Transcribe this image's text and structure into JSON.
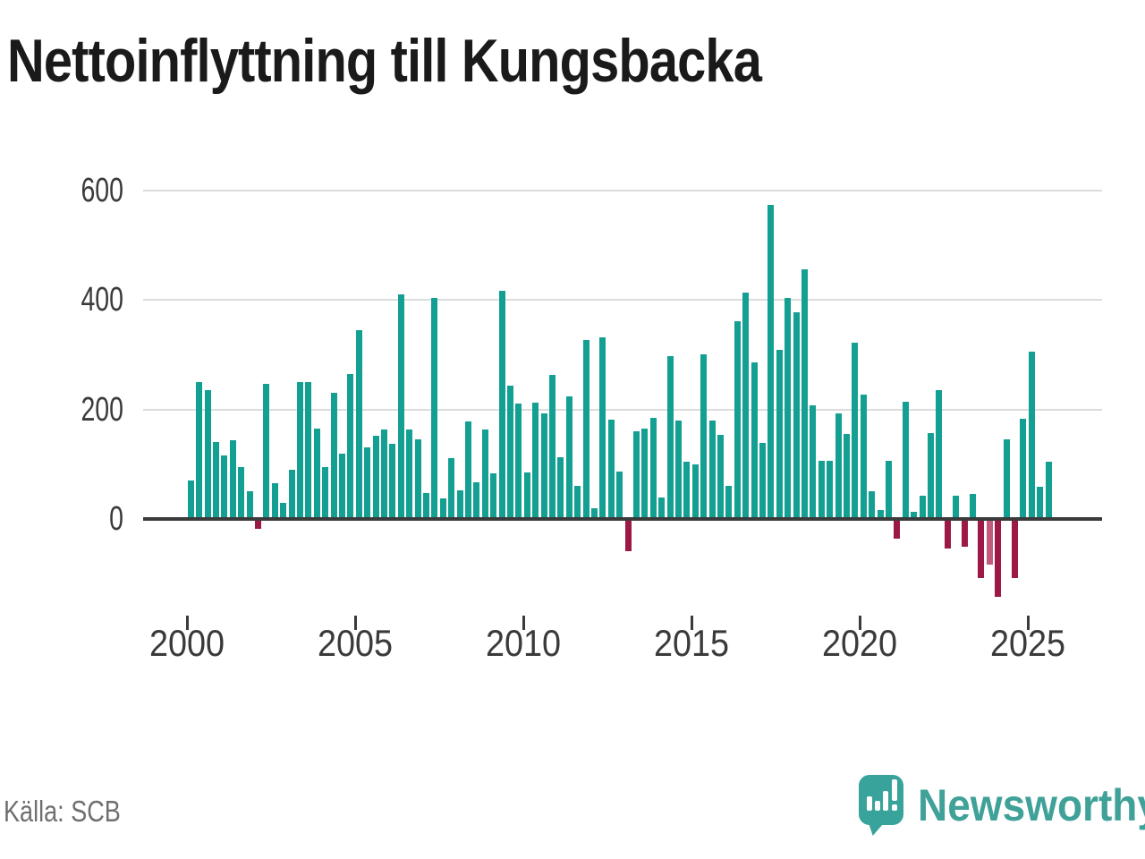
{
  "title": "Nettoinflyttning till Kungsbacka",
  "source": "Källa: SCB",
  "branding": {
    "name": "Newsworthy",
    "icon": "bar-chart-speech-bubble-icon"
  },
  "colors": {
    "positive_bar": "#13a093",
    "negative_bar": "#9b1847",
    "negative_bar_light": "#c25b7c",
    "gridline": "#dcdcdc",
    "zero_axis": "#3b3b3b",
    "axis_text": "#3a3a3a",
    "brand_teal": "#3fa198"
  },
  "chart_data": {
    "type": "bar",
    "title": "Nettoinflyttning till Kungsbacka",
    "xlabel": "",
    "ylabel": "",
    "grid": true,
    "legend": false,
    "y_ticks": [
      0,
      200,
      400,
      600
    ],
    "ylim": [
      -150,
      620
    ],
    "x_tick_labels": [
      "2000",
      "2005",
      "2010",
      "2015",
      "2020",
      "2025"
    ],
    "x_tick_quarter_indices": [
      0,
      20,
      40,
      60,
      80,
      100
    ],
    "highlighted_bar": {
      "x": "2023 K4",
      "style": "lighter red (provisional)"
    },
    "x": [
      "2000 K1",
      "2000 K2",
      "2000 K3",
      "2000 K4",
      "2001 K1",
      "2001 K2",
      "2001 K3",
      "2001 K4",
      "2002 K1",
      "2002 K2",
      "2002 K3",
      "2002 K4",
      "2003 K1",
      "2003 K2",
      "2003 K3",
      "2003 K4",
      "2004 K1",
      "2004 K2",
      "2004 K3",
      "2004 K4",
      "2005 K1",
      "2005 K2",
      "2005 K3",
      "2005 K4",
      "2006 K1",
      "2006 K2",
      "2006 K3",
      "2006 K4",
      "2007 K1",
      "2007 K2",
      "2007 K3",
      "2007 K4",
      "2008 K1",
      "2008 K2",
      "2008 K3",
      "2008 K4",
      "2009 K1",
      "2009 K2",
      "2009 K3",
      "2009 K4",
      "2010 K1",
      "2010 K2",
      "2010 K3",
      "2010 K4",
      "2011 K1",
      "2011 K2",
      "2011 K3",
      "2011 K4",
      "2012 K1",
      "2012 K2",
      "2012 K3",
      "2012 K4",
      "2013 K1",
      "2013 K2",
      "2013 K3",
      "2013 K4",
      "2014 K1",
      "2014 K2",
      "2014 K3",
      "2014 K4",
      "2015 K1",
      "2015 K2",
      "2015 K3",
      "2015 K4",
      "2016 K1",
      "2016 K2",
      "2016 K3",
      "2016 K4",
      "2017 K1",
      "2017 K2",
      "2017 K3",
      "2017 K4",
      "2018 K1",
      "2018 K2",
      "2018 K3",
      "2018 K4",
      "2019 K1",
      "2019 K2",
      "2019 K3",
      "2019 K4",
      "2020 K1",
      "2020 K2",
      "2020 K3",
      "2020 K4",
      "2021 K1",
      "2021 K2",
      "2021 K3",
      "2021 K4",
      "2022 K1",
      "2022 K2",
      "2022 K3",
      "2022 K4",
      "2023 K1",
      "2023 K2",
      "2023 K3",
      "2023 K4",
      "2024 K1",
      "2024 K2",
      "2024 K3",
      "2024 K4",
      "2025 K1",
      "2025 K2",
      "2025 K3"
    ],
    "values": [
      70,
      250,
      235,
      141,
      116,
      144,
      95,
      50,
      -14,
      246,
      65,
      29,
      90,
      250,
      250,
      165,
      95,
      231,
      119,
      265,
      345,
      130,
      152,
      163,
      137,
      410,
      163,
      145,
      48,
      403,
      38,
      111,
      52,
      178,
      67,
      163,
      84,
      417,
      243,
      211,
      85,
      213,
      193,
      263,
      113,
      223,
      60,
      327,
      19,
      331,
      181,
      87,
      -55,
      160,
      165,
      185,
      40,
      297,
      180,
      105,
      99,
      300,
      179,
      153,
      60,
      361,
      413,
      285,
      139,
      573,
      308,
      404,
      377,
      455,
      207,
      106,
      106,
      193,
      155,
      321,
      227,
      51,
      16,
      106,
      -33,
      214,
      13,
      42,
      157,
      235,
      -51,
      43,
      -47,
      46,
      -104,
      -80,
      -138,
      146,
      -104,
      183,
      306,
      58,
      104
    ]
  }
}
